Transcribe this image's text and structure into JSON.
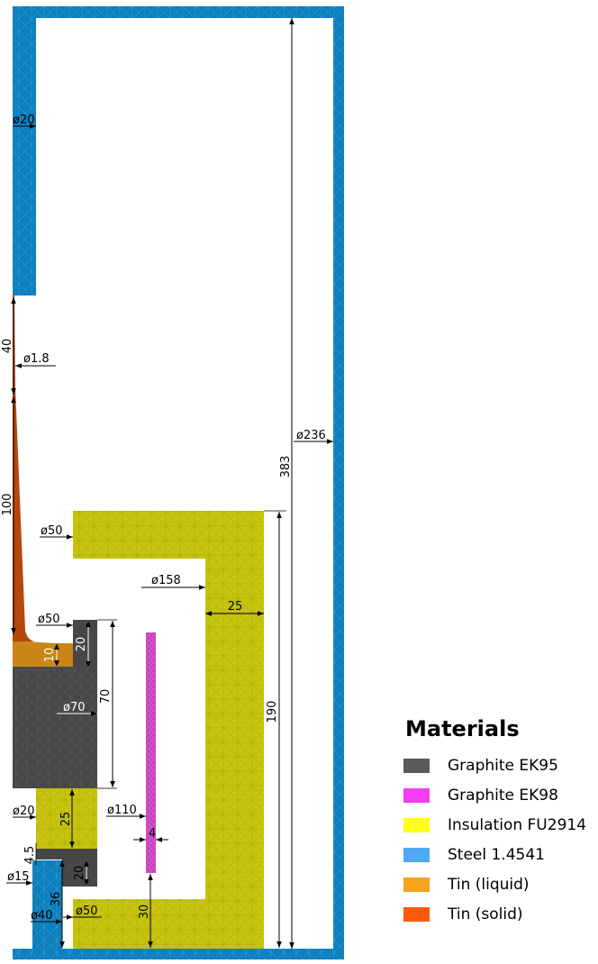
{
  "legend": {
    "title": "Materials",
    "items": [
      {
        "label": "Graphite EK95",
        "color": "#5a5a5a"
      },
      {
        "label": "Graphite EK98",
        "color": "#f33ef3"
      },
      {
        "label": "Insulation FU2914",
        "color": "#ffff17"
      },
      {
        "label": "Steel 1.4541",
        "color": "#4fa9f5"
      },
      {
        "label": "Tin (liquid)",
        "color": "#f7a21b"
      },
      {
        "label": "Tin (solid)",
        "color": "#ff5a0c"
      }
    ]
  },
  "region_colors": {
    "steel": "#0d7fbd",
    "insulation": "#c7c40f",
    "graphite_ek95": "#474747",
    "graphite_ek98": "#c942c0",
    "tin_solid": "#b6470e",
    "tin_liquid": "#c98516"
  },
  "dimensions": {
    "d20_top": "ø20",
    "len40": "40",
    "d1_8": "ø1.8",
    "len100": "100",
    "d236": "ø236",
    "len383": "383",
    "d50_ins": "ø50",
    "d158": "ø158",
    "wall25": "25",
    "d50_crucible": "ø50",
    "len20_top": "20",
    "len10": "10",
    "len70": "70",
    "d70": "ø70",
    "len190": "190",
    "d20_low": "ø20",
    "len25_low": "25",
    "d110": "ø110",
    "len4": "4",
    "len4_5": "4.5",
    "len20_low": "20",
    "d15": "ø15",
    "len36": "36",
    "d40": "ø40",
    "d50_bottom": "ø50",
    "len30": "30"
  }
}
